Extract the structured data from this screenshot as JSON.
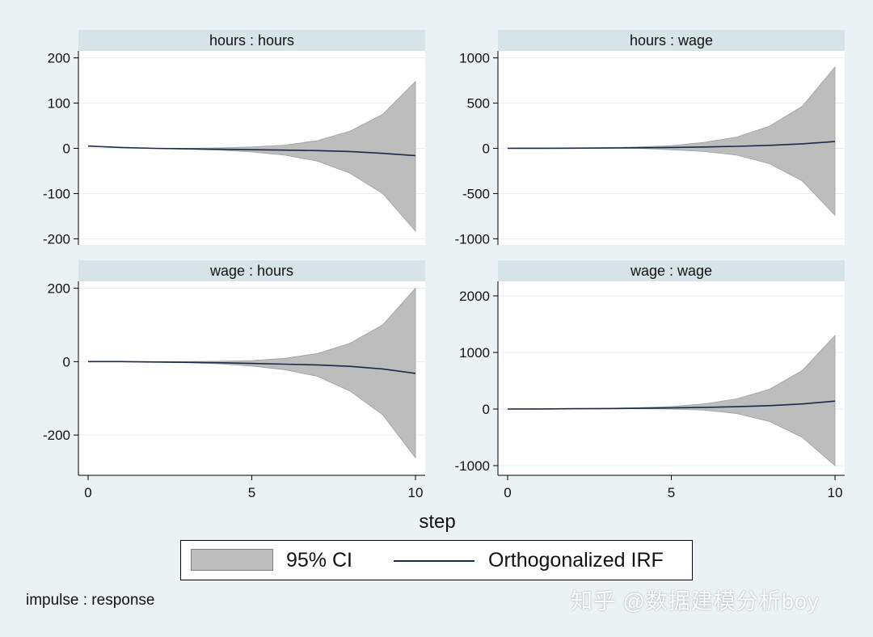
{
  "chart_data": {
    "type": "area",
    "x_title": "step",
    "x_ticks": [
      0,
      5,
      10
    ],
    "note": "impulse : response",
    "legend": {
      "ci_label": "95% CI",
      "irf_label": "Orthogonalized IRF"
    },
    "colors": {
      "ci_fill": "#bdbdbd",
      "irf_line": "#1a2a4a",
      "title_strip": "#d6e4e7",
      "plot_bg": "#ffffff",
      "grid": "#e6eef0"
    },
    "panels": [
      {
        "title": "hours : hours",
        "ylim": [
          -210,
          210
        ],
        "y_ticks": [
          -200,
          -100,
          0,
          100,
          200
        ],
        "x": [
          0,
          1,
          2,
          3,
          4,
          5,
          6,
          7,
          8,
          9,
          10
        ],
        "irf": [
          5,
          2,
          0,
          -1,
          -2,
          -3,
          -4,
          -5,
          -7,
          -11,
          -16
        ],
        "lower": [
          5,
          2,
          0,
          -2,
          -4,
          -8,
          -15,
          -28,
          -55,
          -100,
          -183
        ],
        "upper": [
          5,
          2,
          0,
          0,
          1,
          3,
          7,
          17,
          38,
          75,
          148
        ]
      },
      {
        "title": "hours : wage",
        "ylim": [
          -1050,
          1050
        ],
        "y_ticks": [
          -1000,
          -500,
          0,
          500,
          1000
        ],
        "x": [
          0,
          1,
          2,
          3,
          4,
          5,
          6,
          7,
          8,
          9,
          10
        ],
        "irf": [
          0,
          1,
          2,
          4,
          6,
          10,
          15,
          22,
          33,
          50,
          75
        ],
        "lower": [
          0,
          0,
          1,
          2,
          0,
          -15,
          -35,
          -75,
          -170,
          -360,
          -740
        ],
        "upper": [
          0,
          2,
          4,
          8,
          15,
          30,
          65,
          125,
          245,
          465,
          900
        ]
      },
      {
        "title": "wage : hours",
        "ylim": [
          -290,
          210
        ],
        "y_ticks": [
          -200,
          0,
          200
        ],
        "x": [
          0,
          1,
          2,
          3,
          4,
          5,
          6,
          7,
          8,
          9,
          10
        ],
        "irf": [
          0,
          0,
          -1,
          -2,
          -3,
          -5,
          -7,
          -9,
          -13,
          -20,
          -32
        ],
        "lower": [
          0,
          0,
          -1,
          -3,
          -6,
          -12,
          -22,
          -40,
          -80,
          -145,
          -262
        ],
        "upper": [
          0,
          0,
          0,
          0,
          1,
          3,
          9,
          22,
          50,
          100,
          200
        ]
      },
      {
        "title": "wage : wage",
        "ylim": [
          -1100,
          2200
        ],
        "y_ticks": [
          -1000,
          0,
          1000,
          2000
        ],
        "x": [
          0,
          1,
          2,
          3,
          4,
          5,
          6,
          7,
          8,
          9,
          10
        ],
        "irf": [
          0,
          2,
          5,
          8,
          13,
          20,
          30,
          42,
          60,
          90,
          140
        ],
        "lower": [
          0,
          1,
          3,
          5,
          5,
          0,
          -20,
          -80,
          -220,
          -500,
          -1000
        ],
        "upper": [
          0,
          3,
          7,
          12,
          25,
          45,
          90,
          180,
          350,
          680,
          1300
        ]
      }
    ]
  },
  "watermark": "知乎 @数据建模分析boy"
}
